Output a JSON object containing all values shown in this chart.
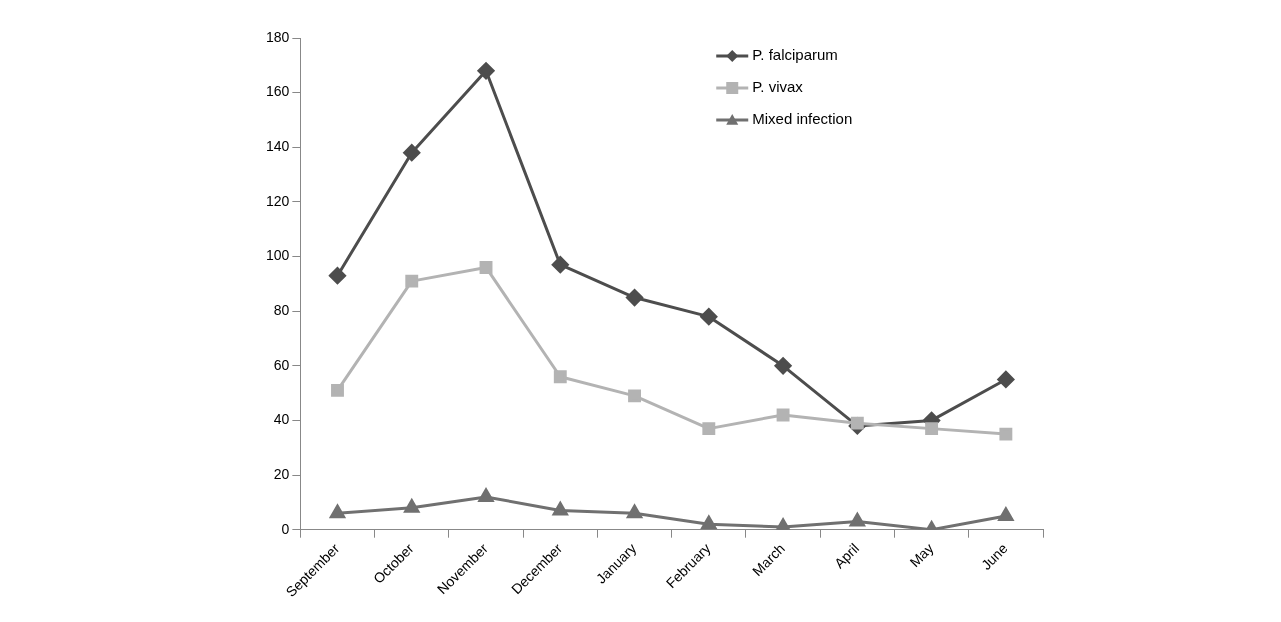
{
  "chart_data": {
    "type": "line",
    "categories": [
      "September",
      "October",
      "November",
      "December",
      "January",
      "February",
      "March",
      "April",
      "May",
      "June"
    ],
    "series": [
      {
        "name": "P. falciparum",
        "color": "#4d4d4d",
        "marker": "diamond",
        "values": [
          93,
          138,
          168,
          97,
          85,
          78,
          60,
          38,
          40,
          55
        ]
      },
      {
        "name": "P. vivax",
        "color": "#b3b3b3",
        "marker": "square",
        "values": [
          51,
          91,
          96,
          56,
          49,
          37,
          42,
          39,
          37,
          35
        ]
      },
      {
        "name": "Mixed infection",
        "color": "#707070",
        "marker": "triangle",
        "values": [
          6,
          8,
          12,
          7,
          6,
          2,
          1,
          3,
          0,
          5
        ]
      }
    ],
    "ylim": [
      0,
      180
    ],
    "yticks": [
      0,
      20,
      40,
      60,
      80,
      100,
      120,
      140,
      160,
      180
    ],
    "grid": false,
    "legend": "top right",
    "line_style": "solid"
  }
}
